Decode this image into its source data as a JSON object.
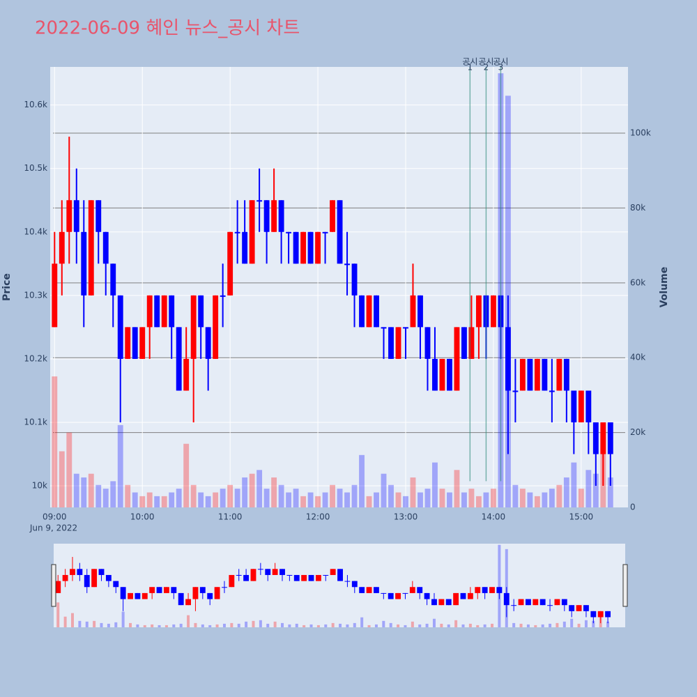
{
  "chart_data": {
    "type": "candlestick",
    "title": "2022-06-09 혜인 뉴스_공시 차트",
    "y_label": "Price",
    "y2_label": "Volume",
    "x_date_label": "Jun 9, 2022",
    "increasing_color": "#ff0000",
    "decreasing_color": "#0000ff",
    "xlim": [
      "2022-06-09 08:57",
      "2022-06-09 15:32"
    ],
    "xticks": [
      {
        "value": "2022-06-09 09:00",
        "label": "09:00"
      },
      {
        "value": "2022-06-09 10:00",
        "label": "10:00"
      },
      {
        "value": "2022-06-09 11:00",
        "label": "11:00"
      },
      {
        "value": "2022-06-09 12:00",
        "label": "12:00"
      },
      {
        "value": "2022-06-09 13:00",
        "label": "13:00"
      },
      {
        "value": "2022-06-09 14:00",
        "label": "14:00"
      },
      {
        "value": "2022-06-09 15:00",
        "label": "15:00"
      }
    ],
    "ylim": [
      9966,
      10660
    ],
    "yticks": [
      {
        "value": 10000,
        "label": "10k"
      },
      {
        "value": 10100,
        "label": "10.1k"
      },
      {
        "value": 10200,
        "label": "10.2k"
      },
      {
        "value": 10300,
        "label": "10.3k"
      },
      {
        "value": 10400,
        "label": "10.4k"
      },
      {
        "value": 10500,
        "label": "10.5k"
      },
      {
        "value": 10600,
        "label": "10.6k"
      }
    ],
    "y2lim": [
      0,
      117700
    ],
    "y2ticks": [
      0,
      {
        "value": 20000,
        "label": "20k"
      },
      {
        "value": 40000,
        "label": "40k"
      },
      {
        "value": 60000,
        "label": "60k"
      },
      {
        "value": 80000,
        "label": "80k"
      },
      {
        "value": 100000,
        "label": "100k"
      }
    ],
    "annotations": [
      {
        "x": "2022-06-09 13:44",
        "text": "공시",
        "number": "1"
      },
      {
        "x": "2022-06-09 13:55",
        "text": "공시",
        "number": "2"
      },
      {
        "x": "2022-06-09 14:05",
        "text": "공시",
        "number": "3"
      }
    ],
    "x": [
      "2022-06-09 09:00",
      "2022-06-09 09:05",
      "2022-06-09 09:10",
      "2022-06-09 09:15",
      "2022-06-09 09:20",
      "2022-06-09 09:25",
      "2022-06-09 09:30",
      "2022-06-09 09:35",
      "2022-06-09 09:40",
      "2022-06-09 09:45",
      "2022-06-09 09:50",
      "2022-06-09 09:55",
      "2022-06-09 10:00",
      "2022-06-09 10:05",
      "2022-06-09 10:10",
      "2022-06-09 10:15",
      "2022-06-09 10:20",
      "2022-06-09 10:25",
      "2022-06-09 10:30",
      "2022-06-09 10:35",
      "2022-06-09 10:40",
      "2022-06-09 10:45",
      "2022-06-09 10:50",
      "2022-06-09 10:55",
      "2022-06-09 11:00",
      "2022-06-09 11:05",
      "2022-06-09 11:10",
      "2022-06-09 11:15",
      "2022-06-09 11:20",
      "2022-06-09 11:25",
      "2022-06-09 11:30",
      "2022-06-09 11:35",
      "2022-06-09 11:40",
      "2022-06-09 11:45",
      "2022-06-09 11:50",
      "2022-06-09 11:55",
      "2022-06-09 12:00",
      "2022-06-09 12:05",
      "2022-06-09 12:10",
      "2022-06-09 12:15",
      "2022-06-09 12:20",
      "2022-06-09 12:25",
      "2022-06-09 12:30",
      "2022-06-09 12:35",
      "2022-06-09 12:40",
      "2022-06-09 12:45",
      "2022-06-09 12:50",
      "2022-06-09 12:55",
      "2022-06-09 13:00",
      "2022-06-09 13:05",
      "2022-06-09 13:10",
      "2022-06-09 13:15",
      "2022-06-09 13:20",
      "2022-06-09 13:25",
      "2022-06-09 13:30",
      "2022-06-09 13:35",
      "2022-06-09 13:40",
      "2022-06-09 13:45",
      "2022-06-09 13:50",
      "2022-06-09 13:55",
      "2022-06-09 14:00",
      "2022-06-09 14:05",
      "2022-06-09 14:10",
      "2022-06-09 14:15",
      "2022-06-09 14:20",
      "2022-06-09 14:25",
      "2022-06-09 14:30",
      "2022-06-09 14:35",
      "2022-06-09 14:40",
      "2022-06-09 14:45",
      "2022-06-09 14:50",
      "2022-06-09 14:55",
      "2022-06-09 15:00",
      "2022-06-09 15:05",
      "2022-06-09 15:10",
      "2022-06-09 15:15",
      "2022-06-09 15:20"
    ],
    "open": [
      10250,
      10350,
      10400,
      10450,
      10400,
      10300,
      10450,
      10400,
      10350,
      10300,
      10200,
      10250,
      10200,
      10250,
      10300,
      10250,
      10300,
      10250,
      10150,
      10200,
      10300,
      10250,
      10200,
      10300,
      10300,
      10400,
      10400,
      10350,
      10450,
      10450,
      10400,
      10450,
      10400,
      10400,
      10350,
      10400,
      10350,
      10400,
      10400,
      10450,
      10350,
      10350,
      10300,
      10250,
      10300,
      10250,
      10250,
      10200,
      10250,
      10250,
      10300,
      10250,
      10200,
      10150,
      10200,
      10150,
      10250,
      10200,
      10250,
      10300,
      10250,
      10300,
      10250,
      10150,
      10150,
      10200,
      10150,
      10200,
      10150,
      10150,
      10200,
      10150,
      10100,
      10150,
      10100,
      10050,
      10100
    ],
    "high": [
      10400,
      10450,
      10550,
      10500,
      10450,
      10450,
      10450,
      10400,
      10350,
      10300,
      10250,
      10250,
      10250,
      10300,
      10300,
      10300,
      10300,
      10250,
      10250,
      10300,
      10300,
      10250,
      10300,
      10350,
      10400,
      10450,
      10450,
      10450,
      10500,
      10450,
      10500,
      10450,
      10400,
      10400,
      10400,
      10400,
      10400,
      10400,
      10450,
      10450,
      10400,
      10350,
      10300,
      10300,
      10300,
      10250,
      10250,
      10250,
      10250,
      10350,
      10300,
      10250,
      10250,
      10200,
      10200,
      10250,
      10250,
      10300,
      10300,
      10300,
      10300,
      10300,
      10300,
      10200,
      10200,
      10200,
      10200,
      10200,
      10200,
      10200,
      10200,
      10150,
      10150,
      10150,
      10100,
      10100,
      10100
    ],
    "low": [
      10250,
      10300,
      10350,
      10350,
      10250,
      10300,
      10350,
      10300,
      10250,
      10100,
      10200,
      10200,
      10200,
      10200,
      10250,
      10250,
      10200,
      10150,
      10150,
      10100,
      10200,
      10150,
      10200,
      10250,
      10300,
      10350,
      10350,
      10350,
      10400,
      10350,
      10400,
      10350,
      10350,
      10350,
      10350,
      10350,
      10350,
      10350,
      10400,
      10350,
      10300,
      10250,
      10250,
      10250,
      10250,
      10200,
      10200,
      10200,
      10200,
      10250,
      10200,
      10150,
      10150,
      10150,
      10150,
      10150,
      10200,
      10200,
      10200,
      10200,
      10250,
      10200,
      10050,
      10100,
      10150,
      10150,
      10150,
      10150,
      10100,
      10150,
      10100,
      10050,
      10100,
      10050,
      10000,
      10000,
      10000
    ],
    "close": [
      10350,
      10400,
      10450,
      10400,
      10300,
      10450,
      10400,
      10350,
      10300,
      10200,
      10250,
      10200,
      10250,
      10300,
      10250,
      10300,
      10250,
      10150,
      10200,
      10300,
      10250,
      10200,
      10300,
      10300,
      10400,
      10400,
      10350,
      10450,
      10450,
      10400,
      10450,
      10400,
      10400,
      10350,
      10400,
      10350,
      10400,
      10400,
      10450,
      10350,
      10350,
      10300,
      10250,
      10300,
      10250,
      10250,
      10200,
      10250,
      10250,
      10300,
      10250,
      10200,
      10150,
      10200,
      10150,
      10250,
      10200,
      10250,
      10300,
      10250,
      10300,
      10250,
      10150,
      10150,
      10200,
      10150,
      10200,
      10150,
      10150,
      10200,
      10150,
      10100,
      10150,
      10100,
      10050,
      10100,
      10050
    ],
    "volume": [
      35000,
      15000,
      20000,
      9000,
      8000,
      9000,
      6000,
      5000,
      7000,
      22000,
      6000,
      4000,
      3000,
      4000,
      3000,
      3000,
      4000,
      5000,
      17000,
      6000,
      4000,
      3000,
      4000,
      5000,
      6000,
      5000,
      8000,
      9000,
      10000,
      5000,
      8000,
      6000,
      4000,
      5000,
      3000,
      4000,
      3000,
      4000,
      6000,
      5000,
      4000,
      6000,
      14000,
      3000,
      4000,
      9000,
      6000,
      4000,
      3000,
      8000,
      4000,
      5000,
      12000,
      5000,
      4000,
      10000,
      4000,
      5000,
      3000,
      4000,
      5000,
      116000,
      110000,
      6000,
      5000,
      4000,
      3000,
      4000,
      5000,
      6000,
      8000,
      12000,
      5000,
      10000,
      9000,
      20000,
      8000
    ]
  }
}
